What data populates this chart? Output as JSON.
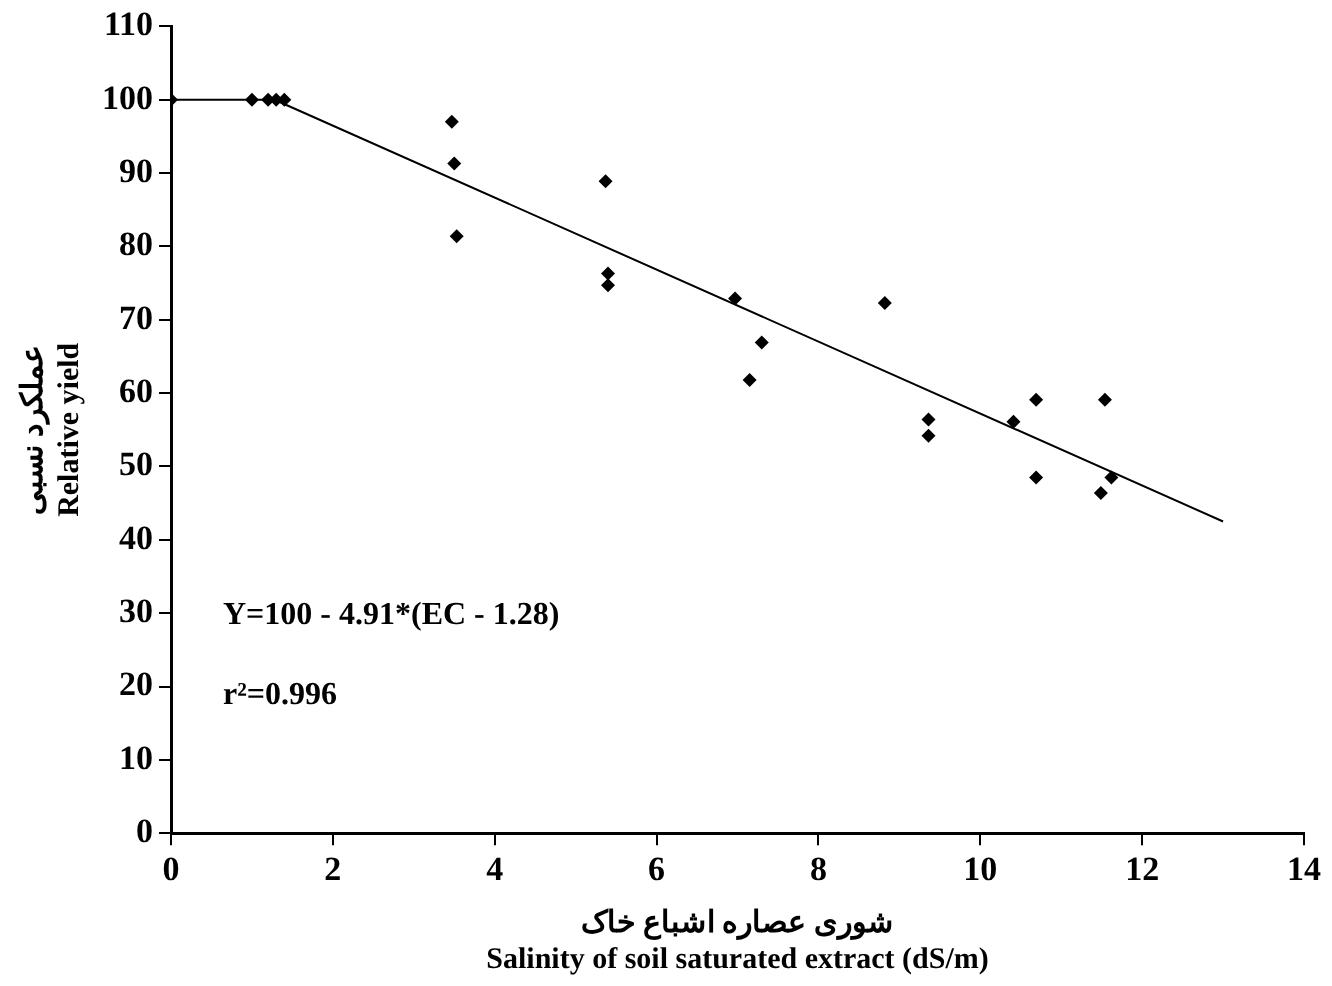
{
  "chart_data": {
    "type": "scatter",
    "xlabel": "شوری عصاره اشباع خاک\nSalinity of soil saturated extract (dS/m)",
    "ylabel": "عملکرد نسبی\nRelative yield",
    "xlim": [
      0,
      14
    ],
    "xticks": [
      0,
      2,
      4,
      6,
      8,
      10,
      12,
      14
    ],
    "ylim": [
      0,
      110
    ],
    "yticks": [
      0,
      10,
      20,
      30,
      40,
      50,
      60,
      70,
      80,
      90,
      100,
      110
    ],
    "grid": false,
    "legend": false,
    "marker": "diamond",
    "annotations": [
      "Y=100 - 4.91*(EC - 1.28)",
      "r²=0.996"
    ],
    "series": [
      {
        "type": "scatter",
        "color": "#000000",
        "x": [
          0,
          1.0,
          1.2,
          1.3,
          1.4,
          3.47,
          3.5,
          3.53,
          5.37,
          5.4,
          5.4,
          6.97,
          7.15,
          7.3,
          8.82,
          9.36,
          9.36,
          10.41,
          10.69,
          10.69,
          11.49,
          11.54,
          11.62
        ],
        "values": [
          100,
          100,
          100,
          100,
          100,
          97,
          91.3,
          81.4,
          88.9,
          76.3,
          74.7,
          72.9,
          61.8,
          66.9,
          72.3,
          56.4,
          54.2,
          56.1,
          59.1,
          48.5,
          46.4,
          59.1,
          48.5
        ]
      },
      {
        "type": "line",
        "color": "#000000",
        "x": [
          0,
          1.28,
          13
        ],
        "values": [
          100,
          100,
          42.5
        ],
        "marker": "none",
        "line_style": "solid"
      }
    ]
  }
}
